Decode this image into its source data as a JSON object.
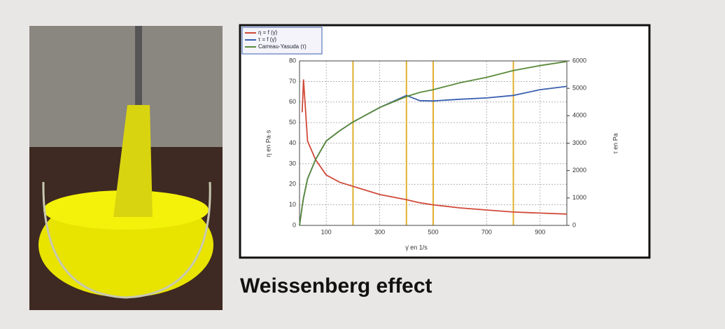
{
  "chart_data": {
    "type": "line",
    "caption": "Weissenberg effect",
    "xlabel": "γ̇ en 1/s",
    "ylabel": "η en Pa·s",
    "y2label": "τ en Pa",
    "x": [
      0,
      10,
      15,
      30,
      60,
      100,
      150,
      200,
      300,
      400,
      450,
      500,
      600,
      700,
      800,
      900,
      1000
    ],
    "series": [
      {
        "name": "η = f (γ̇)",
        "color": "#d04a3a",
        "axis": "y",
        "values": [
          null,
          55,
          71,
          41,
          32,
          24.5,
          21,
          19,
          15,
          12.5,
          11,
          10,
          8.5,
          7.5,
          6.5,
          6,
          5.5
        ]
      },
      {
        "name": "τ = f (γ̇)",
        "color": "#3a5fb0",
        "axis": "y2",
        "values": [
          0,
          700,
          1000,
          1700,
          2400,
          3080,
          3450,
          3770,
          4300,
          4740,
          4550,
          4540,
          4600,
          4650,
          4740,
          4950,
          5070
        ]
      },
      {
        "name": "Carreau-Yasuda (τ)",
        "color": "#5a8a3a",
        "axis": "y2",
        "values": [
          0,
          700,
          1000,
          1700,
          2400,
          3080,
          3450,
          3770,
          4300,
          4700,
          4850,
          4950,
          5200,
          5400,
          5650,
          5830,
          5980
        ]
      }
    ],
    "xlim": [
      0,
      1000
    ],
    "xticks": [
      100,
      300,
      500,
      700,
      900
    ],
    "ylim": [
      0,
      80
    ],
    "yticks": [
      0,
      10,
      20,
      30,
      40,
      50,
      60,
      70,
      80
    ],
    "y2lim": [
      0,
      6000
    ],
    "y2ticks": [
      0,
      1000,
      2000,
      3000,
      4000,
      5000,
      6000
    ],
    "reference_lines": [
      200,
      400,
      500,
      800
    ],
    "reference_color": "#e0b030",
    "grid": true,
    "legend": "top-left"
  }
}
